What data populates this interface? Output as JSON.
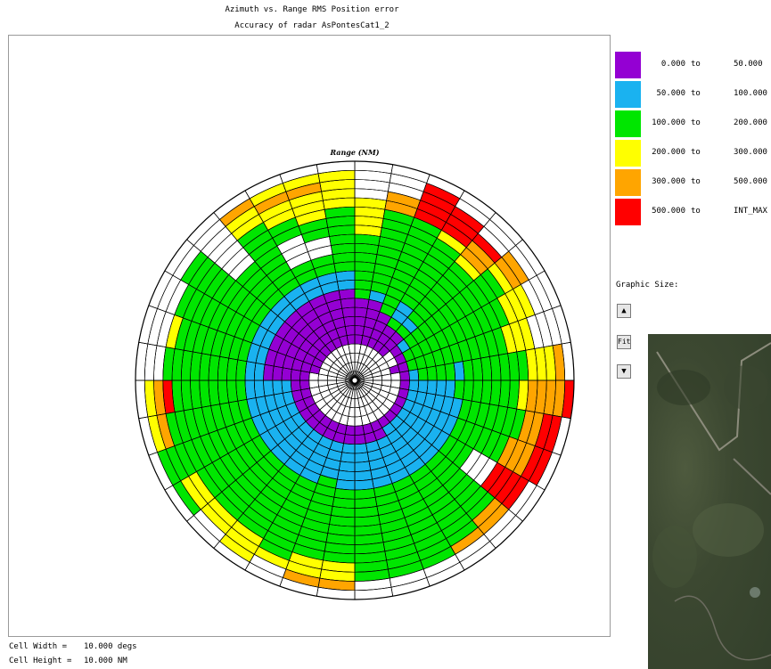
{
  "titles": {
    "line1": "Azimuth vs. Range    RMS  Position error",
    "line2": "Accuracy of radar AsPontesCat1_2"
  },
  "legend": [
    {
      "from": "0.000",
      "sep": "to",
      "to": "50.000",
      "color": "#9400d3"
    },
    {
      "from": "50.000",
      "sep": "to",
      "to": "100.000",
      "color": "#1ab2f0"
    },
    {
      "from": "100.000",
      "sep": "to",
      "to": "200.000",
      "color": "#00e600"
    },
    {
      "from": "200.000",
      "sep": "to",
      "to": "300.000",
      "color": "#ffff00"
    },
    {
      "from": "300.000",
      "sep": "to",
      "to": "500.000",
      "color": "#ffa500"
    },
    {
      "from": "500.000",
      "sep": "to",
      "to": "INT_MAX",
      "color": "#ff0000"
    }
  ],
  "controls": {
    "graphic_size_label": "Graphic Size:",
    "up_glyph": "▲",
    "fit_label": "Fit",
    "down_glyph": "▼"
  },
  "cell_info": {
    "width_label": "Cell Width =",
    "width_value": "10.000 degs",
    "height_label": "Cell Height =",
    "height_value": "10.000 NM"
  },
  "chart_data": {
    "type": "heatmap",
    "coordinate_system": "polar",
    "title": "Azimuth vs. Range    RMS  Position error",
    "subtitle": "Accuracy of radar AsPontesCat1_2",
    "range_axis_label": "Range (NM)",
    "cell_width_deg": 10,
    "cell_height_nm": 10,
    "range_max_nm": 240,
    "n_sectors": 36,
    "n_rings": 24,
    "azimuth_origin": "north",
    "azimuth_direction": "clockwise",
    "legend_placement": "right",
    "category_codes": {
      "0": "no data",
      "1": "0.000 to 50.000",
      "2": "50.000 to 100.000",
      "3": "100.000 to 200.000",
      "4": "200.000 to 300.000",
      "5": "300.000 to 500.000",
      "6": "500.000 to INT_MAX"
    },
    "cells_by_sector": [
      "000011111333333344440000",
      "000011111233333333355000",
      "000011113333333333366660",
      "000011132233333333466600",
      "000011132333333334556000",
      "000001233333333333345500",
      "000001333333333333444000",
      "000011333333333334440000",
      "000001233332333333344450",
      "000001222223333333455556",
      "000001222222333333355660",
      "000001222222333333555660",
      "000001222222333000666600",
      "000001222222333333335500",
      "000001222222333333333500",
      "000001122222333333333300",
      "000001122222333333333300",
      "000001122222333333333300",
      "000001122222333333334450",
      "000001122223333333334450",
      "000001122222333333333400",
      "000001122222333333334440",
      "000001122222333333334400",
      "000001122222333333334430",
      "000001122222333333333330",
      "000001122222333333333540",
      "000001122222333333336540",
      "000001111122333333333000",
      "000011111122333333334000",
      "000011111122333333333000",
      "000011111122333333333300",
      "000011111122333330000000",
      "000011111122333333334450",
      "000011111122330003344540",
      "000011111122330033444540",
      "000011111122333333344440"
    ]
  }
}
